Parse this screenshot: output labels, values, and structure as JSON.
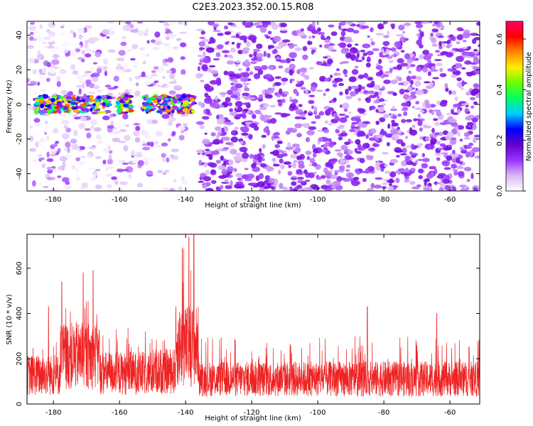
{
  "title": "C2E3.2023.352.00.15.R08",
  "chart_data": [
    {
      "type": "heatmap",
      "xlabel": "Height of straight line (km)",
      "ylabel": "Frequency (Hz)",
      "xlim": [
        -188,
        -51
      ],
      "ylim": [
        -50,
        48
      ],
      "x_ticks": [
        -180,
        -160,
        -140,
        -120,
        -100,
        -80,
        -60
      ],
      "y_ticks": [
        -40,
        -20,
        0,
        20,
        40
      ],
      "colorbar": {
        "label": "Normalized spectral amplitude",
        "range": [
          0,
          0.67
        ],
        "ticks": [
          0.0,
          0.2,
          0.4,
          0.6
        ],
        "colors": [
          "#ffffff",
          "#d9b8f5",
          "#9933ff",
          "#6600cc",
          "#0000ff",
          "#00ccff",
          "#00ff66",
          "#66ff00",
          "#ffee00",
          "#ff8800",
          "#ff0000",
          "#ff0066"
        ]
      },
      "features": [
        {
          "desc": "strong signal band",
          "x_range": [
            -186,
            -137
          ],
          "freq_range": [
            -5,
            5
          ],
          "peak_amplitude": 0.6
        },
        {
          "desc": "empty data gap",
          "x_range": [
            -140,
            -136
          ]
        }
      ]
    },
    {
      "type": "line",
      "xlabel": "Height of straight line (km)",
      "ylabel": "SNR (10 * v/v)",
      "xlim": [
        -188,
        -51
      ],
      "ylim": [
        0,
        750
      ],
      "x_ticks": [
        -180,
        -160,
        -140,
        -120,
        -100,
        -80,
        -60
      ],
      "y_ticks": [
        0,
        200,
        400,
        600
      ],
      "color": "#ee2222",
      "series_summary": [
        {
          "x_range": [
            -188,
            -178
          ],
          "typical": 150,
          "peaks": 280
        },
        {
          "x_range": [
            -178,
            -166
          ],
          "typical": 250,
          "peaks": 550
        },
        {
          "x_range": [
            -166,
            -150
          ],
          "typical": 160,
          "peaks": 350
        },
        {
          "x_range": [
            -150,
            -143
          ],
          "typical": 170,
          "peaks": 350
        },
        {
          "x_range": [
            -143,
            -136
          ],
          "typical": 300,
          "peaks": 750
        },
        {
          "x_range": [
            -136,
            -51
          ],
          "typical": 130,
          "peaks": 300
        }
      ],
      "spikes": [
        {
          "x": -181.5,
          "y": 430
        },
        {
          "x": -177.5,
          "y": 540
        },
        {
          "x": -171,
          "y": 580
        },
        {
          "x": -168,
          "y": 590
        },
        {
          "x": -141,
          "y": 690
        },
        {
          "x": -139,
          "y": 740
        },
        {
          "x": -137.5,
          "y": 750
        },
        {
          "x": -85,
          "y": 430
        },
        {
          "x": -64,
          "y": 400
        }
      ]
    }
  ]
}
